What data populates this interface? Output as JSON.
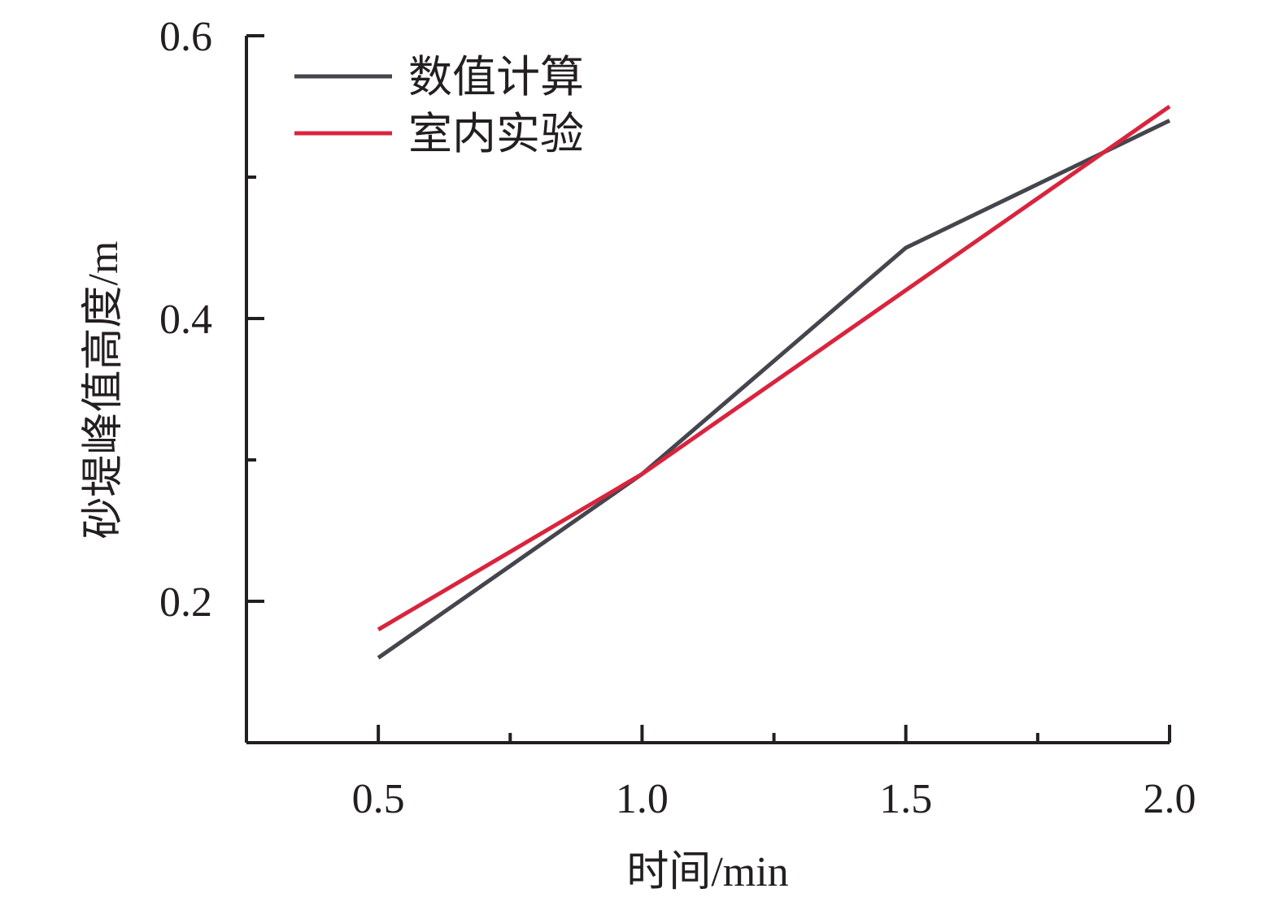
{
  "chart_data": {
    "type": "line",
    "xlabel": "时间/min",
    "ylabel": "砂堤峰值高度/m",
    "xlim": [
      0.25,
      2.0
    ],
    "ylim": [
      0.1,
      0.6
    ],
    "xticks": [
      0.5,
      1.0,
      1.5,
      2.0
    ],
    "xtick_labels": [
      "0.5",
      "1.0",
      "1.5",
      "2.0"
    ],
    "x_minor_ticks": [
      0.75,
      1.25,
      1.75
    ],
    "yticks": [
      0.2,
      0.4,
      0.6
    ],
    "ytick_labels": [
      "0.2",
      "0.4",
      "0.6"
    ],
    "y_minor_ticks": [
      0.3,
      0.5
    ],
    "grid": false,
    "legend_position": "top-left",
    "series": [
      {
        "name": "数值计算",
        "color": "#45454d",
        "x": [
          0.5,
          1.0,
          1.5,
          2.0
        ],
        "y": [
          0.16,
          0.29,
          0.45,
          0.54
        ]
      },
      {
        "name": "室内实验",
        "color": "#d9243e",
        "x": [
          0.5,
          1.0,
          1.5,
          2.0
        ],
        "y": [
          0.18,
          0.29,
          0.42,
          0.55
        ]
      }
    ]
  }
}
